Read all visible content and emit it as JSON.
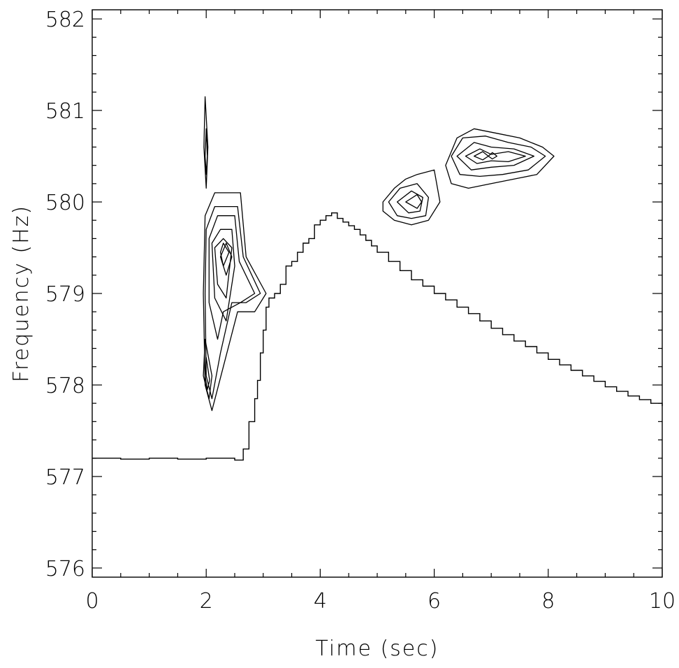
{
  "chart_data": {
    "type": "line",
    "title": "",
    "xlabel": "Time (sec)",
    "ylabel": "Frequency (Hz)",
    "xlim": [
      0,
      10
    ],
    "ylim": [
      575.9,
      582.1
    ],
    "x_ticks": [
      0,
      2,
      4,
      6,
      8,
      10
    ],
    "y_ticks": [
      576,
      577,
      578,
      579,
      580,
      581,
      582
    ],
    "x_tick_labels": [
      "0",
      "2",
      "4",
      "6",
      "8",
      "10"
    ],
    "y_tick_labels": [
      "576",
      "577",
      "578",
      "579",
      "580",
      "581",
      "582"
    ],
    "grid": false,
    "legend": "none",
    "series": [
      {
        "style": "step",
        "x": [
          0.0,
          0.5,
          1.0,
          1.5,
          2.0,
          2.5,
          2.65,
          2.75,
          2.85,
          2.9,
          2.95,
          3.0,
          3.05,
          3.1,
          3.2,
          3.3,
          3.4,
          3.5,
          3.6,
          3.7,
          3.8,
          3.9,
          4.0,
          4.1,
          4.2,
          4.3,
          4.4,
          4.5,
          4.6,
          4.7,
          4.8,
          4.9,
          5.0,
          5.2,
          5.4,
          5.6,
          5.8,
          6.0,
          6.2,
          6.4,
          6.6,
          6.8,
          7.0,
          7.2,
          7.4,
          7.6,
          7.8,
          8.0,
          8.2,
          8.4,
          8.6,
          8.8,
          9.0,
          9.2,
          9.4,
          9.6,
          9.8,
          10.0
        ],
        "y": [
          577.2,
          577.19,
          577.2,
          577.19,
          577.2,
          577.18,
          577.3,
          577.6,
          577.85,
          578.05,
          578.35,
          578.6,
          578.85,
          578.95,
          579.0,
          579.1,
          579.3,
          579.35,
          579.45,
          579.55,
          579.6,
          579.75,
          579.8,
          579.85,
          579.88,
          579.82,
          579.78,
          579.74,
          579.7,
          579.64,
          579.58,
          579.52,
          579.45,
          579.35,
          579.25,
          579.15,
          579.08,
          579.0,
          578.93,
          578.85,
          578.78,
          578.7,
          578.62,
          578.55,
          578.48,
          578.42,
          578.35,
          578.28,
          578.22,
          578.16,
          578.1,
          578.04,
          577.98,
          577.93,
          577.88,
          577.84,
          577.8,
          577.77
        ]
      }
    ],
    "contours": [
      {
        "id": "c1-outer",
        "points": [
          [
            1.98,
            581.15
          ],
          [
            2.03,
            580.6
          ],
          [
            2.0,
            580.15
          ],
          [
            1.96,
            580.6
          ]
        ]
      },
      {
        "id": "c1-inner",
        "points": [
          [
            2.0,
            580.8
          ],
          [
            2.02,
            580.5
          ],
          [
            2.0,
            580.3
          ],
          [
            1.98,
            580.5
          ]
        ]
      },
      {
        "id": "c2-1",
        "points": [
          [
            1.98,
            579.85
          ],
          [
            2.15,
            580.1
          ],
          [
            2.6,
            580.1
          ],
          [
            2.7,
            579.4
          ],
          [
            3.05,
            579.0
          ],
          [
            2.85,
            578.8
          ],
          [
            2.55,
            578.8
          ],
          [
            2.3,
            578.2
          ],
          [
            2.1,
            577.72
          ],
          [
            1.98,
            578.0
          ],
          [
            1.95,
            579.0
          ]
        ]
      },
      {
        "id": "c2-2",
        "points": [
          [
            2.0,
            579.7
          ],
          [
            2.15,
            579.95
          ],
          [
            2.55,
            579.95
          ],
          [
            2.65,
            579.4
          ],
          [
            2.95,
            579.0
          ],
          [
            2.7,
            578.9
          ],
          [
            2.45,
            578.9
          ],
          [
            2.25,
            578.35
          ],
          [
            2.1,
            577.85
          ],
          [
            2.0,
            578.1
          ],
          [
            1.98,
            579.0
          ]
        ]
      },
      {
        "id": "c2-3",
        "points": [
          [
            2.05,
            579.6
          ],
          [
            2.2,
            579.85
          ],
          [
            2.5,
            579.85
          ],
          [
            2.58,
            579.35
          ],
          [
            2.85,
            579.0
          ],
          [
            2.6,
            578.9
          ],
          [
            2.3,
            578.8
          ],
          [
            2.2,
            578.5
          ],
          [
            2.05,
            578.9
          ]
        ]
      },
      {
        "id": "c2-4",
        "points": [
          [
            2.1,
            579.55
          ],
          [
            2.25,
            579.7
          ],
          [
            2.45,
            579.7
          ],
          [
            2.5,
            579.3
          ],
          [
            2.35,
            578.7
          ],
          [
            2.15,
            578.95
          ]
        ]
      },
      {
        "id": "c2-5",
        "points": [
          [
            2.15,
            579.5
          ],
          [
            2.3,
            579.6
          ],
          [
            2.45,
            579.5
          ],
          [
            2.35,
            578.95
          ],
          [
            2.2,
            579.1
          ]
        ]
      },
      {
        "id": "c2-6",
        "points": [
          [
            2.25,
            579.4
          ],
          [
            2.35,
            579.55
          ],
          [
            2.45,
            579.4
          ],
          [
            2.35,
            579.2
          ]
        ]
      },
      {
        "id": "c2-7",
        "points": [
          [
            2.25,
            579.45
          ],
          [
            2.3,
            579.55
          ],
          [
            2.4,
            579.45
          ],
          [
            2.3,
            579.3
          ]
        ]
      },
      {
        "id": "c2-8",
        "points": [
          [
            1.98,
            578.5
          ],
          [
            2.1,
            578.1
          ],
          [
            2.05,
            577.85
          ],
          [
            1.95,
            578.1
          ]
        ]
      },
      {
        "id": "c2-9",
        "points": [
          [
            2.0,
            578.3
          ],
          [
            2.06,
            578.05
          ],
          [
            2.02,
            577.95
          ],
          [
            1.98,
            578.1
          ]
        ]
      },
      {
        "id": "c3-1",
        "points": [
          [
            5.1,
            580.0
          ],
          [
            5.3,
            580.15
          ],
          [
            5.5,
            580.25
          ],
          [
            5.7,
            580.3
          ],
          [
            6.0,
            580.35
          ],
          [
            6.1,
            580.0
          ],
          [
            5.9,
            579.8
          ],
          [
            5.6,
            579.75
          ],
          [
            5.3,
            579.8
          ],
          [
            5.1,
            579.9
          ]
        ]
      },
      {
        "id": "c3-2",
        "points": [
          [
            5.2,
            580.0
          ],
          [
            5.4,
            580.15
          ],
          [
            5.7,
            580.2
          ],
          [
            5.9,
            580.05
          ],
          [
            5.85,
            579.85
          ],
          [
            5.6,
            579.82
          ],
          [
            5.35,
            579.85
          ]
        ]
      },
      {
        "id": "c3-3",
        "points": [
          [
            5.35,
            580.0
          ],
          [
            5.6,
            580.12
          ],
          [
            5.8,
            580.05
          ],
          [
            5.75,
            579.9
          ],
          [
            5.55,
            579.88
          ]
        ]
      },
      {
        "id": "c3-4",
        "points": [
          [
            5.5,
            580.0
          ],
          [
            5.7,
            580.08
          ],
          [
            5.78,
            580.0
          ],
          [
            5.7,
            579.93
          ]
        ]
      },
      {
        "id": "c4-1",
        "points": [
          [
            6.2,
            580.4
          ],
          [
            6.4,
            580.7
          ],
          [
            6.7,
            580.8
          ],
          [
            7.1,
            580.75
          ],
          [
            7.5,
            580.7
          ],
          [
            7.9,
            580.6
          ],
          [
            8.1,
            580.5
          ],
          [
            7.8,
            580.3
          ],
          [
            7.4,
            580.25
          ],
          [
            7.0,
            580.2
          ],
          [
            6.6,
            580.15
          ],
          [
            6.3,
            580.2
          ]
        ]
      },
      {
        "id": "c4-2",
        "points": [
          [
            6.3,
            580.5
          ],
          [
            6.5,
            580.7
          ],
          [
            6.9,
            580.72
          ],
          [
            7.3,
            580.65
          ],
          [
            7.7,
            580.6
          ],
          [
            7.95,
            580.5
          ],
          [
            7.65,
            580.35
          ],
          [
            7.2,
            580.3
          ],
          [
            6.8,
            580.28
          ],
          [
            6.45,
            580.3
          ]
        ]
      },
      {
        "id": "c4-3",
        "points": [
          [
            6.4,
            580.5
          ],
          [
            6.7,
            580.65
          ],
          [
            7.0,
            580.6
          ],
          [
            7.4,
            580.58
          ],
          [
            7.75,
            580.5
          ],
          [
            7.4,
            580.4
          ],
          [
            7.0,
            580.38
          ],
          [
            6.65,
            580.35
          ]
        ]
      },
      {
        "id": "c4-4",
        "points": [
          [
            6.55,
            580.5
          ],
          [
            6.8,
            580.58
          ],
          [
            7.0,
            580.52
          ],
          [
            7.3,
            580.55
          ],
          [
            7.6,
            580.5
          ],
          [
            7.3,
            580.44
          ],
          [
            7.0,
            580.45
          ],
          [
            6.75,
            580.42
          ]
        ]
      },
      {
        "id": "c4-5",
        "points": [
          [
            6.7,
            580.5
          ],
          [
            6.85,
            580.55
          ],
          [
            6.95,
            580.5
          ],
          [
            6.85,
            580.46
          ]
        ]
      },
      {
        "id": "c4-6",
        "points": [
          [
            6.95,
            580.5
          ],
          [
            7.02,
            580.54
          ],
          [
            7.1,
            580.5
          ],
          [
            7.02,
            580.47
          ]
        ]
      }
    ]
  }
}
